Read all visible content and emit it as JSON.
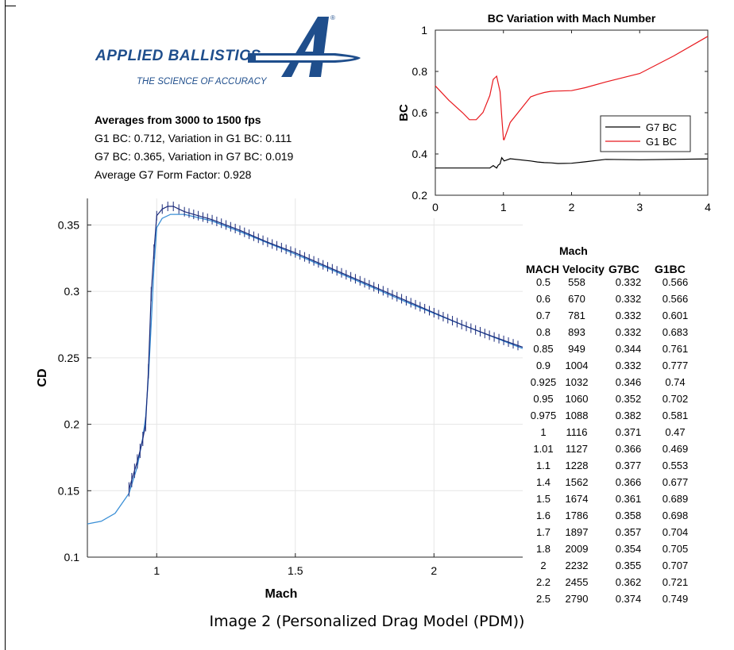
{
  "logo": {
    "brand": "APPLIED BALLISTICS",
    "tagline": "THE SCIENCE OF ACCURACY",
    "mark_letter": "A",
    "registered": "®",
    "color": "#1f4e8c"
  },
  "stats": {
    "heading": "Averages from 3000 to 1500 fps",
    "g1_line": "G1 BC: 0.712, Variation in G1 BC: 0.111",
    "g7_line": "G7 BC: 0.365, Variation in G7 BC: 0.019",
    "ff_line": "Average G7 Form Factor: 0.928"
  },
  "caption": "Image 2 (Personalized Drag Model (PDM))",
  "table": {
    "title": "Mach",
    "headers": [
      "MACH",
      "Velocity",
      "G7BC",
      "G1BC"
    ],
    "rows": [
      [
        "0.5",
        "558",
        "0.332",
        "0.566"
      ],
      [
        "0.6",
        "670",
        "0.332",
        "0.566"
      ],
      [
        "0.7",
        "781",
        "0.332",
        "0.601"
      ],
      [
        "0.8",
        "893",
        "0.332",
        "0.683"
      ],
      [
        "0.85",
        "949",
        "0.344",
        "0.761"
      ],
      [
        "0.9",
        "1004",
        "0.332",
        "0.777"
      ],
      [
        "0.925",
        "1032",
        "0.346",
        "0.74"
      ],
      [
        "0.95",
        "1060",
        "0.352",
        "0.702"
      ],
      [
        "0.975",
        "1088",
        "0.382",
        "0.581"
      ],
      [
        "1",
        "1116",
        "0.371",
        "0.47"
      ],
      [
        "1.01",
        "1127",
        "0.366",
        "0.469"
      ],
      [
        "1.1",
        "1228",
        "0.377",
        "0.553"
      ],
      [
        "1.4",
        "1562",
        "0.366",
        "0.677"
      ],
      [
        "1.5",
        "1674",
        "0.361",
        "0.689"
      ],
      [
        "1.6",
        "1786",
        "0.358",
        "0.698"
      ],
      [
        "1.7",
        "1897",
        "0.357",
        "0.704"
      ],
      [
        "1.8",
        "2009",
        "0.354",
        "0.705"
      ],
      [
        "2",
        "2232",
        "0.355",
        "0.707"
      ],
      [
        "2.2",
        "2455",
        "0.362",
        "0.721"
      ],
      [
        "2.5",
        "2790",
        "0.374",
        "0.749"
      ]
    ]
  },
  "chart_data": [
    {
      "type": "line",
      "title": "BC Variation with Mach Number",
      "xlabel": "",
      "ylabel": "BC",
      "xlim": [
        0,
        4
      ],
      "ylim": [
        0.2,
        1
      ],
      "xticks": [
        "0",
        "1",
        "2",
        "3",
        "4"
      ],
      "yticks": [
        "0.2",
        "0.4",
        "0.6",
        "0.8",
        "1"
      ],
      "legend_position": "center-right",
      "series": [
        {
          "name": "G7 BC",
          "color": "#000000",
          "points": [
            [
              0,
              0.332
            ],
            [
              0.5,
              0.332
            ],
            [
              0.8,
              0.332
            ],
            [
              0.85,
              0.344
            ],
            [
              0.9,
              0.332
            ],
            [
              0.925,
              0.346
            ],
            [
              0.95,
              0.352
            ],
            [
              0.975,
              0.382
            ],
            [
              1,
              0.371
            ],
            [
              1.01,
              0.366
            ],
            [
              1.1,
              0.377
            ],
            [
              1.4,
              0.366
            ],
            [
              1.5,
              0.361
            ],
            [
              1.6,
              0.358
            ],
            [
              1.7,
              0.357
            ],
            [
              1.8,
              0.354
            ],
            [
              2,
              0.355
            ],
            [
              2.2,
              0.362
            ],
            [
              2.5,
              0.374
            ],
            [
              3,
              0.372
            ],
            [
              4,
              0.376
            ]
          ]
        },
        {
          "name": "G1 BC",
          "color": "#e8191e",
          "points": [
            [
              0,
              0.73
            ],
            [
              0.2,
              0.66
            ],
            [
              0.4,
              0.6
            ],
            [
              0.5,
              0.566
            ],
            [
              0.6,
              0.566
            ],
            [
              0.7,
              0.601
            ],
            [
              0.8,
              0.683
            ],
            [
              0.85,
              0.761
            ],
            [
              0.9,
              0.777
            ],
            [
              0.925,
              0.74
            ],
            [
              0.95,
              0.702
            ],
            [
              0.975,
              0.581
            ],
            [
              1,
              0.47
            ],
            [
              1.01,
              0.469
            ],
            [
              1.1,
              0.553
            ],
            [
              1.4,
              0.677
            ],
            [
              1.5,
              0.689
            ],
            [
              1.6,
              0.698
            ],
            [
              1.7,
              0.704
            ],
            [
              1.8,
              0.705
            ],
            [
              2,
              0.707
            ],
            [
              2.2,
              0.721
            ],
            [
              2.5,
              0.749
            ],
            [
              3,
              0.79
            ],
            [
              3.5,
              0.875
            ],
            [
              4,
              0.97
            ]
          ]
        }
      ]
    },
    {
      "type": "line",
      "title": "",
      "xlabel": "Mach",
      "ylabel": "CD",
      "xlim": [
        0.75,
        2.32
      ],
      "ylim": [
        0.1,
        0.37
      ],
      "xticks": [
        "1",
        "1.5",
        "2"
      ],
      "yticks": [
        "0.1",
        "0.15",
        "0.2",
        "0.25",
        "0.3",
        "0.35"
      ],
      "grid": true,
      "series": [
        {
          "color": "#3a8fd6",
          "points": [
            [
              0.75,
              0.125
            ],
            [
              0.8,
              0.127
            ],
            [
              0.85,
              0.133
            ],
            [
              0.9,
              0.148
            ],
            [
              0.93,
              0.168
            ],
            [
              0.95,
              0.19
            ],
            [
              0.96,
              0.205
            ],
            [
              0.97,
              0.235
            ],
            [
              0.98,
              0.275
            ],
            [
              0.99,
              0.318
            ],
            [
              1.0,
              0.348
            ],
            [
              1.02,
              0.355
            ],
            [
              1.05,
              0.358
            ],
            [
              1.1,
              0.358
            ],
            [
              1.2,
              0.353
            ],
            [
              1.3,
              0.345
            ],
            [
              1.5,
              0.328
            ],
            [
              1.7,
              0.31
            ],
            [
              1.9,
              0.292
            ],
            [
              2.1,
              0.275
            ],
            [
              2.32,
              0.257
            ]
          ]
        },
        {
          "color": "#1a2a7a",
          "error_bars": true,
          "points": [
            [
              0.9,
              0.151
            ],
            [
              0.91,
              0.158
            ],
            [
              0.92,
              0.165
            ],
            [
              0.93,
              0.172
            ],
            [
              0.94,
              0.18
            ],
            [
              0.95,
              0.189
            ],
            [
              0.96,
              0.2
            ],
            [
              0.97,
              0.24
            ],
            [
              0.98,
              0.298
            ],
            [
              0.99,
              0.33
            ],
            [
              1.0,
              0.357
            ],
            [
              1.02,
              0.362
            ],
            [
              1.04,
              0.364
            ],
            [
              1.06,
              0.364
            ],
            [
              1.08,
              0.362
            ],
            [
              1.1,
              0.36
            ],
            [
              1.15,
              0.357
            ],
            [
              1.2,
              0.354
            ],
            [
              1.3,
              0.346
            ],
            [
              1.4,
              0.337
            ],
            [
              1.5,
              0.329
            ],
            [
              1.6,
              0.32
            ],
            [
              1.7,
              0.311
            ],
            [
              1.8,
              0.302
            ],
            [
              1.9,
              0.293
            ],
            [
              2.0,
              0.284
            ],
            [
              2.1,
              0.275
            ],
            [
              2.2,
              0.267
            ],
            [
              2.32,
              0.258
            ]
          ]
        }
      ]
    }
  ]
}
